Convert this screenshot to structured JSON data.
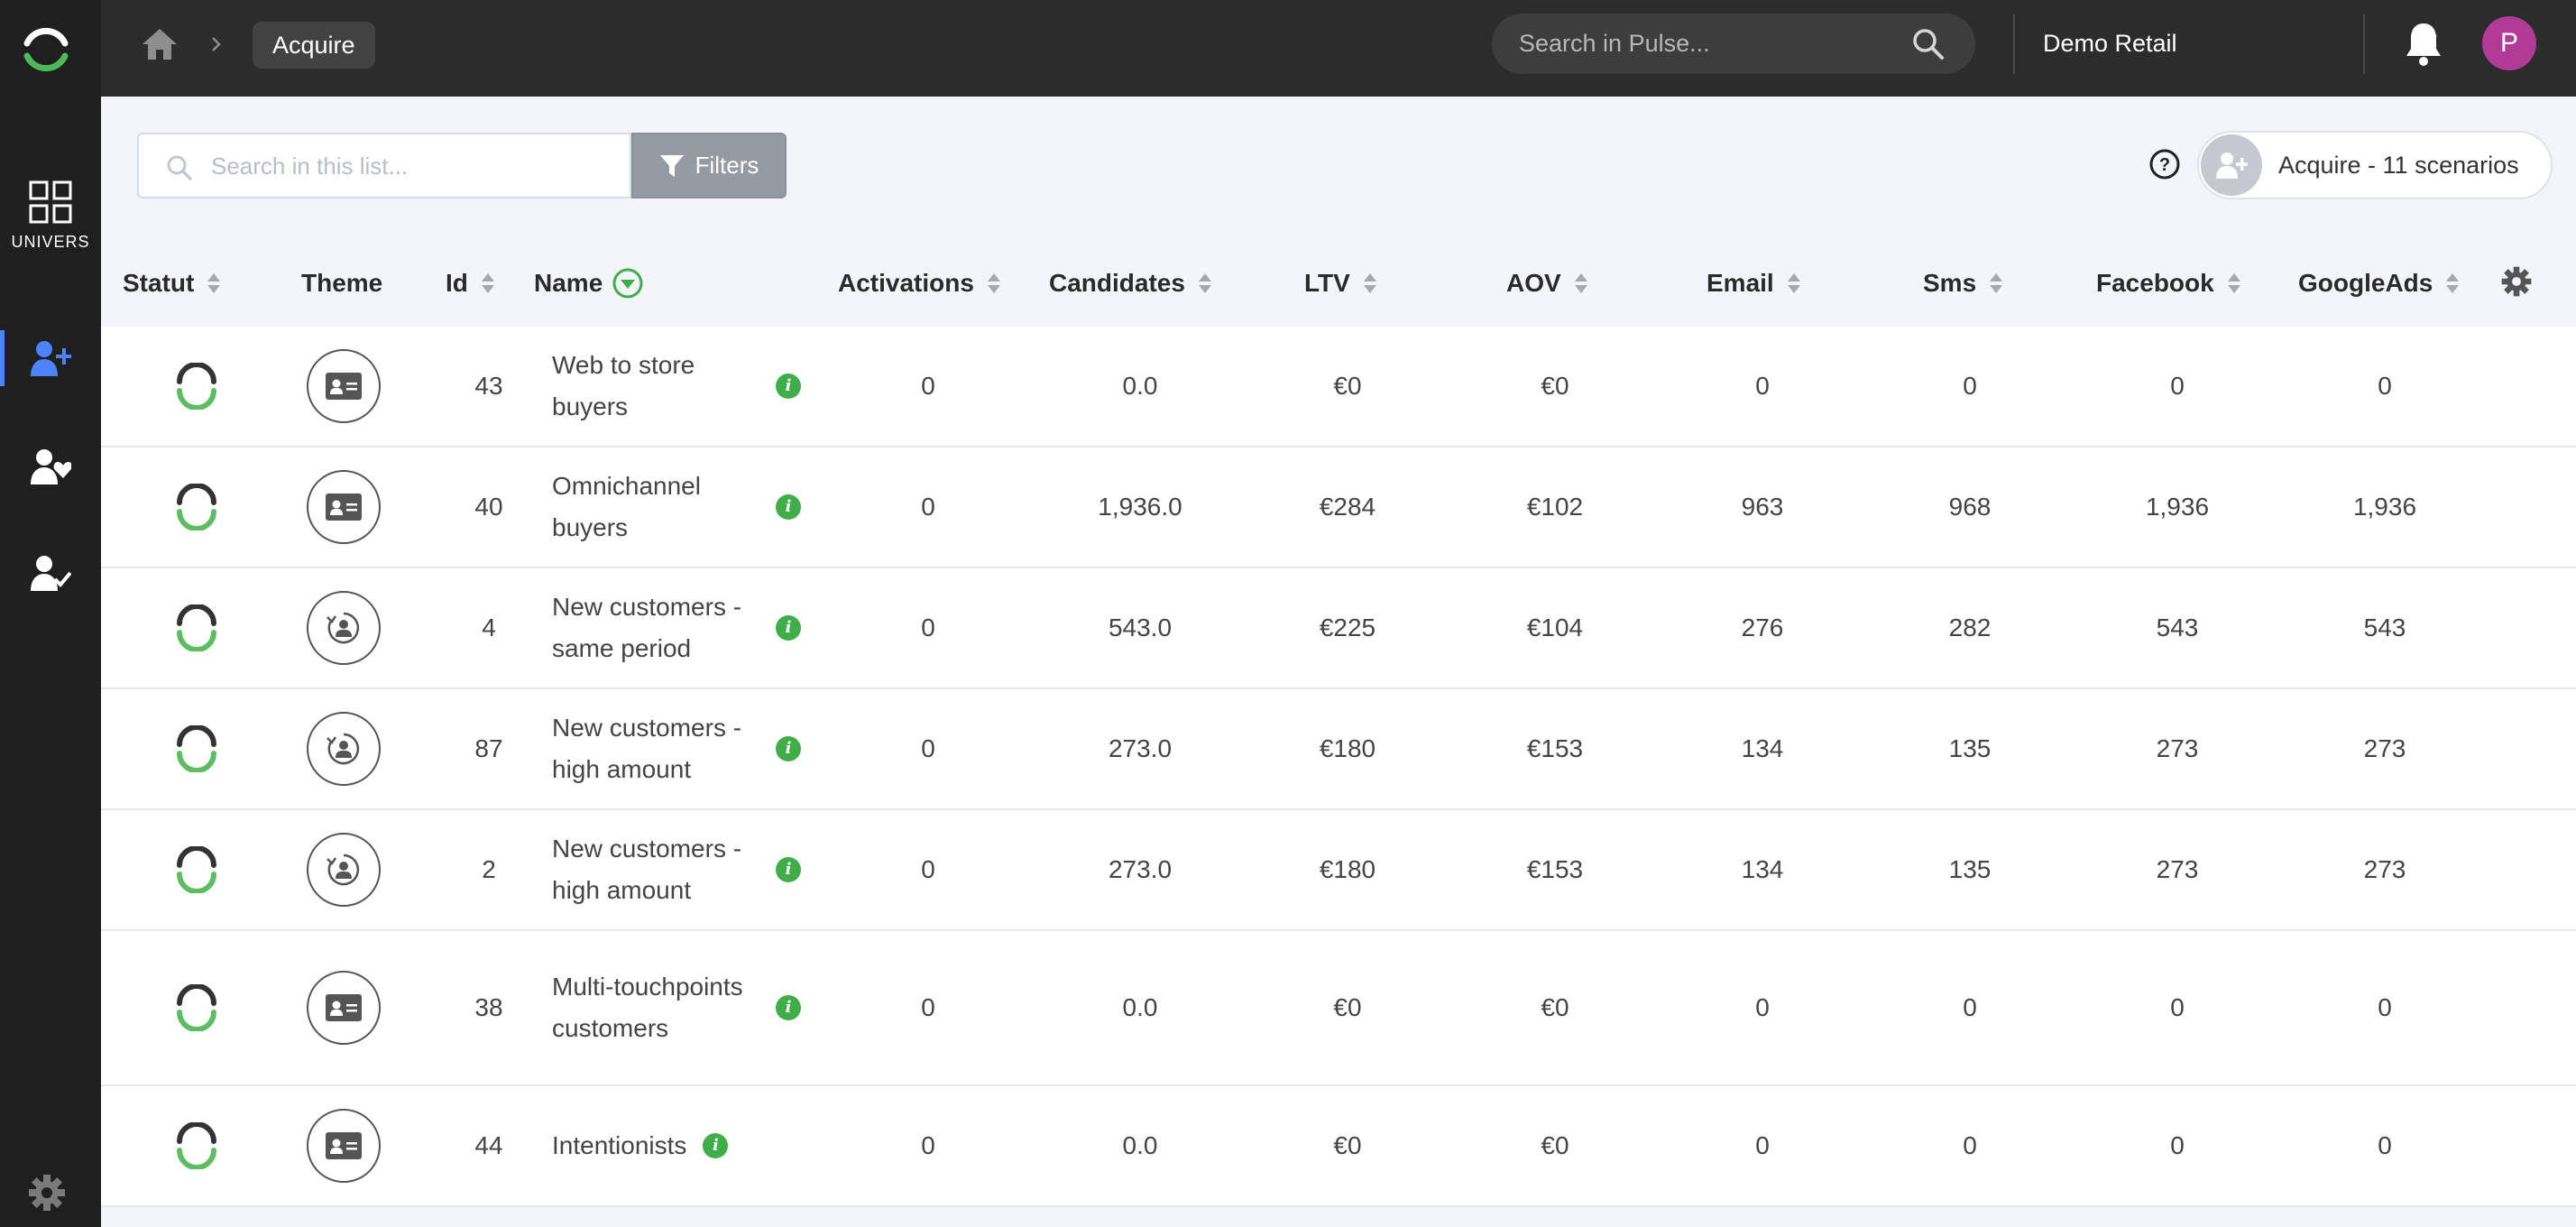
{
  "topbar": {
    "breadcrumb": "Acquire",
    "search_placeholder": "Search in Pulse...",
    "account": "Demo Retail",
    "avatar_initial": "P"
  },
  "sidebar": {
    "univers_label": "UNIVERS"
  },
  "toolbar": {
    "list_search_placeholder": "Search in this list...",
    "filters_label": "Filters",
    "scenarios_label": "Acquire - 11 scenarios"
  },
  "table": {
    "columns": {
      "statut": "Statut",
      "theme": "Theme",
      "id": "Id",
      "name": "Name",
      "activations": "Activations",
      "candidates": "Candidates",
      "ltv": "LTV",
      "aov": "AOV",
      "email": "Email",
      "sms": "Sms",
      "facebook": "Facebook",
      "googleads": "GoogleAds"
    },
    "rows": [
      {
        "theme": "card",
        "id": "43",
        "name": "Web to store buyers",
        "activations": "0",
        "candidates": "0.0",
        "ltv": "€0",
        "aov": "€0",
        "email": "0",
        "sms": "0",
        "facebook": "0",
        "googleads": "0"
      },
      {
        "theme": "card",
        "id": "40",
        "name": "Omnichannel buyers",
        "activations": "0",
        "candidates": "1,936.0",
        "ltv": "€284",
        "aov": "€102",
        "email": "963",
        "sms": "968",
        "facebook": "1,936",
        "googleads": "1,936"
      },
      {
        "theme": "cycle",
        "id": "4",
        "name": "New customers - same period",
        "activations": "0",
        "candidates": "543.0",
        "ltv": "€225",
        "aov": "€104",
        "email": "276",
        "sms": "282",
        "facebook": "543",
        "googleads": "543"
      },
      {
        "theme": "cycle",
        "id": "87",
        "name": "New customers - high amount",
        "activations": "0",
        "candidates": "273.0",
        "ltv": "€180",
        "aov": "€153",
        "email": "134",
        "sms": "135",
        "facebook": "273",
        "googleads": "273"
      },
      {
        "theme": "cycle",
        "id": "2",
        "name": "New customers - high amount",
        "activations": "0",
        "candidates": "273.0",
        "ltv": "€180",
        "aov": "€153",
        "email": "134",
        "sms": "135",
        "facebook": "273",
        "googleads": "273"
      },
      {
        "theme": "card",
        "id": "38",
        "name": "Multi-touchpoints customers",
        "activations": "0",
        "candidates": "0.0",
        "ltv": "€0",
        "aov": "€0",
        "email": "0",
        "sms": "0",
        "facebook": "0",
        "googleads": "0"
      },
      {
        "theme": "card",
        "id": "44",
        "name": "Intentionists",
        "activations": "0",
        "candidates": "0.0",
        "ltv": "€0",
        "aov": "€0",
        "email": "0",
        "sms": "0",
        "facebook": "0",
        "googleads": "0"
      }
    ]
  },
  "colors": {
    "accent_blue": "#4c84ff",
    "status_green": "#3fae49",
    "avatar": "#b13b96"
  }
}
